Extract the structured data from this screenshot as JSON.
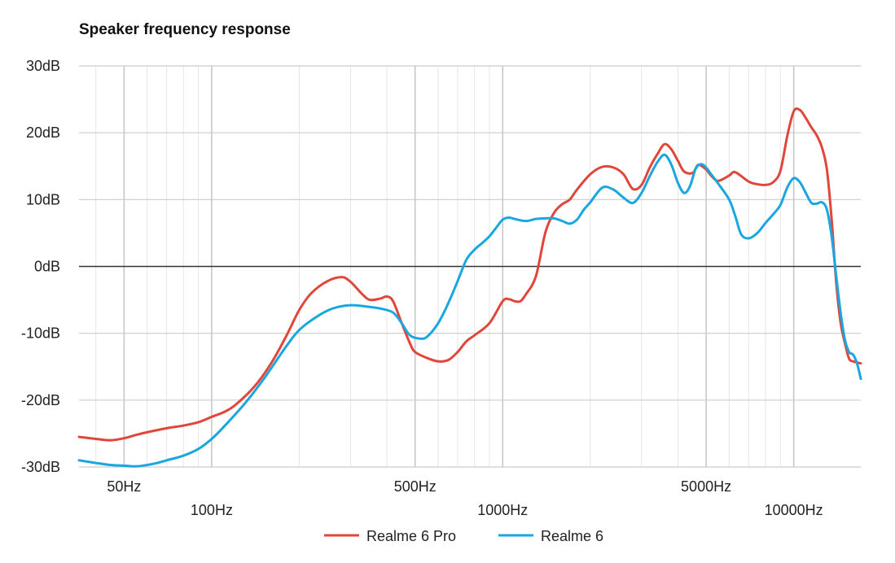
{
  "chart_data": {
    "type": "line",
    "title": "Speaker frequency response",
    "x_scale": "log",
    "xlim": [
      35,
      17000
    ],
    "ylim": [
      -30,
      30
    ],
    "y_ticks": [
      {
        "value": 30,
        "label": "30dB"
      },
      {
        "value": 20,
        "label": "20dB"
      },
      {
        "value": 10,
        "label": "10dB"
      },
      {
        "value": 0,
        "label": "0dB"
      },
      {
        "value": -10,
        "label": "-10dB"
      },
      {
        "value": -20,
        "label": "-20dB"
      },
      {
        "value": -30,
        "label": "-30dB"
      }
    ],
    "x_ticks": [
      {
        "value": 50,
        "label": "50Hz",
        "row": 1
      },
      {
        "value": 100,
        "label": "100Hz",
        "row": 2
      },
      {
        "value": 500,
        "label": "500Hz",
        "row": 1
      },
      {
        "value": 1000,
        "label": "1000Hz",
        "row": 2
      },
      {
        "value": 5000,
        "label": "5000Hz",
        "row": 1
      },
      {
        "value": 10000,
        "label": "10000Hz",
        "row": 2
      }
    ],
    "grid": true,
    "legend_position": "bottom",
    "series": [
      {
        "name": "Realme 6 Pro",
        "color": "#e0463a",
        "points": [
          [
            35,
            -25.5
          ],
          [
            40,
            -25.8
          ],
          [
            45,
            -26.0
          ],
          [
            50,
            -25.7
          ],
          [
            55,
            -25.2
          ],
          [
            60,
            -24.8
          ],
          [
            70,
            -24.2
          ],
          [
            80,
            -23.8
          ],
          [
            90,
            -23.3
          ],
          [
            100,
            -22.5
          ],
          [
            110,
            -21.8
          ],
          [
            120,
            -20.8
          ],
          [
            140,
            -18.0
          ],
          [
            160,
            -14.5
          ],
          [
            180,
            -10.5
          ],
          [
            200,
            -6.5
          ],
          [
            220,
            -4.0
          ],
          [
            250,
            -2.2
          ],
          [
            280,
            -1.6
          ],
          [
            300,
            -2.3
          ],
          [
            330,
            -4.2
          ],
          [
            350,
            -5.0
          ],
          [
            380,
            -4.8
          ],
          [
            400,
            -4.5
          ],
          [
            420,
            -5.2
          ],
          [
            450,
            -8.5
          ],
          [
            480,
            -11.5
          ],
          [
            500,
            -12.8
          ],
          [
            550,
            -13.7
          ],
          [
            600,
            -14.2
          ],
          [
            650,
            -14.0
          ],
          [
            700,
            -12.8
          ],
          [
            750,
            -11.2
          ],
          [
            800,
            -10.3
          ],
          [
            900,
            -8.5
          ],
          [
            1000,
            -5.2
          ],
          [
            1050,
            -4.9
          ],
          [
            1100,
            -5.2
          ],
          [
            1150,
            -5.2
          ],
          [
            1200,
            -4.2
          ],
          [
            1300,
            -1.5
          ],
          [
            1400,
            5.0
          ],
          [
            1500,
            8.0
          ],
          [
            1600,
            9.3
          ],
          [
            1700,
            10.0
          ],
          [
            1800,
            11.5
          ],
          [
            2000,
            13.8
          ],
          [
            2200,
            14.9
          ],
          [
            2400,
            14.8
          ],
          [
            2600,
            13.8
          ],
          [
            2800,
            11.6
          ],
          [
            3000,
            12.2
          ],
          [
            3200,
            14.8
          ],
          [
            3400,
            16.8
          ],
          [
            3600,
            18.3
          ],
          [
            3800,
            17.5
          ],
          [
            4000,
            15.8
          ],
          [
            4200,
            14.2
          ],
          [
            4500,
            14.0
          ],
          [
            4700,
            15.2
          ],
          [
            5000,
            14.5
          ],
          [
            5200,
            13.6
          ],
          [
            5500,
            12.8
          ],
          [
            6000,
            13.6
          ],
          [
            6300,
            14.1
          ],
          [
            7000,
            12.7
          ],
          [
            7500,
            12.3
          ],
          [
            8000,
            12.2
          ],
          [
            8500,
            12.6
          ],
          [
            9000,
            14.3
          ],
          [
            9500,
            19.5
          ],
          [
            10000,
            23.2
          ],
          [
            10500,
            23.4
          ],
          [
            11000,
            22.2
          ],
          [
            11500,
            20.8
          ],
          [
            12000,
            19.6
          ],
          [
            12500,
            17.8
          ],
          [
            13000,
            14.5
          ],
          [
            13500,
            7.0
          ],
          [
            14000,
            -2.5
          ],
          [
            14500,
            -8.5
          ],
          [
            15000,
            -11.5
          ],
          [
            15500,
            -13.8
          ],
          [
            16000,
            -14.2
          ],
          [
            17000,
            -14.5
          ]
        ]
      },
      {
        "name": "Realme 6",
        "color": "#1aa6e0",
        "points": [
          [
            35,
            -29.0
          ],
          [
            40,
            -29.4
          ],
          [
            45,
            -29.7
          ],
          [
            50,
            -29.8
          ],
          [
            55,
            -29.9
          ],
          [
            60,
            -29.7
          ],
          [
            65,
            -29.4
          ],
          [
            70,
            -29.0
          ],
          [
            80,
            -28.3
          ],
          [
            90,
            -27.3
          ],
          [
            100,
            -25.8
          ],
          [
            110,
            -24.0
          ],
          [
            130,
            -20.5
          ],
          [
            150,
            -17.0
          ],
          [
            180,
            -12.0
          ],
          [
            200,
            -9.5
          ],
          [
            230,
            -7.5
          ],
          [
            260,
            -6.3
          ],
          [
            300,
            -5.8
          ],
          [
            340,
            -6.0
          ],
          [
            380,
            -6.3
          ],
          [
            420,
            -6.9
          ],
          [
            450,
            -8.5
          ],
          [
            480,
            -10.3
          ],
          [
            520,
            -10.8
          ],
          [
            550,
            -10.5
          ],
          [
            600,
            -8.5
          ],
          [
            650,
            -5.5
          ],
          [
            700,
            -2.2
          ],
          [
            750,
            1.0
          ],
          [
            800,
            2.5
          ],
          [
            850,
            3.5
          ],
          [
            900,
            4.5
          ],
          [
            950,
            5.8
          ],
          [
            1000,
            7.0
          ],
          [
            1050,
            7.3
          ],
          [
            1100,
            7.1
          ],
          [
            1200,
            6.8
          ],
          [
            1300,
            7.1
          ],
          [
            1400,
            7.2
          ],
          [
            1500,
            7.2
          ],
          [
            1600,
            6.8
          ],
          [
            1700,
            6.4
          ],
          [
            1800,
            7.0
          ],
          [
            1900,
            8.5
          ],
          [
            2000,
            9.6
          ],
          [
            2200,
            11.8
          ],
          [
            2400,
            11.5
          ],
          [
            2600,
            10.3
          ],
          [
            2800,
            9.5
          ],
          [
            3000,
            11.0
          ],
          [
            3200,
            13.5
          ],
          [
            3400,
            15.6
          ],
          [
            3600,
            16.7
          ],
          [
            3800,
            15.2
          ],
          [
            4000,
            12.5
          ],
          [
            4200,
            11.0
          ],
          [
            4400,
            12.0
          ],
          [
            4600,
            14.6
          ],
          [
            4800,
            15.3
          ],
          [
            5000,
            14.8
          ],
          [
            5200,
            13.8
          ],
          [
            5500,
            12.4
          ],
          [
            6000,
            10.0
          ],
          [
            6300,
            7.5
          ],
          [
            6600,
            4.8
          ],
          [
            7000,
            4.2
          ],
          [
            7500,
            5.0
          ],
          [
            8000,
            6.5
          ],
          [
            8500,
            7.8
          ],
          [
            9000,
            9.2
          ],
          [
            9500,
            11.8
          ],
          [
            10000,
            13.2
          ],
          [
            10500,
            12.6
          ],
          [
            11000,
            11.0
          ],
          [
            11500,
            9.5
          ],
          [
            12000,
            9.4
          ],
          [
            12500,
            9.6
          ],
          [
            13000,
            8.5
          ],
          [
            13500,
            4.5
          ],
          [
            14000,
            -1.5
          ],
          [
            14500,
            -7.0
          ],
          [
            15000,
            -11.0
          ],
          [
            15500,
            -12.8
          ],
          [
            16000,
            -13.2
          ],
          [
            16500,
            -14.5
          ],
          [
            17000,
            -16.8
          ]
        ]
      }
    ]
  }
}
